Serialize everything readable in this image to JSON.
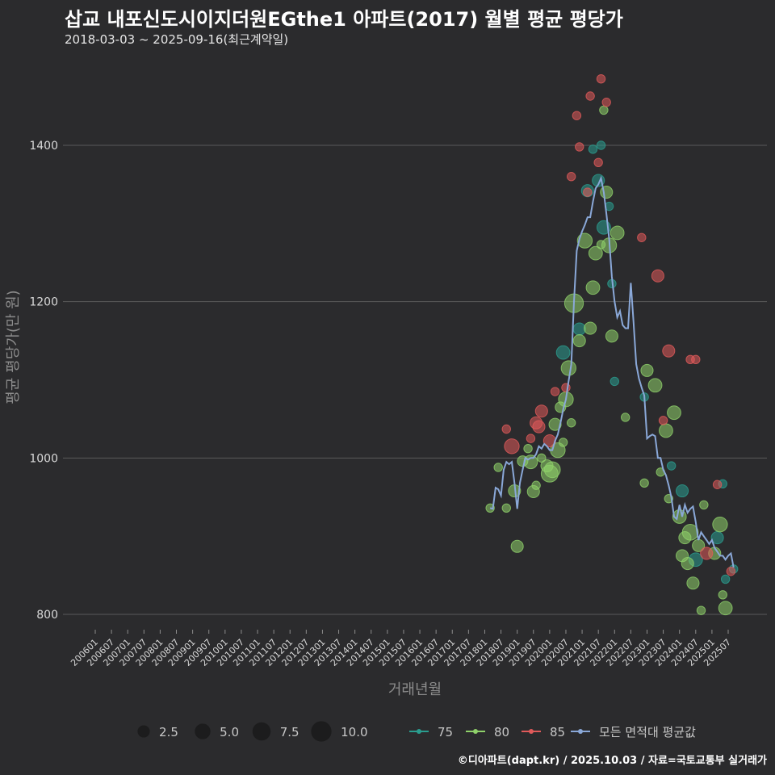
{
  "header": {
    "title": "삽교 내포신도시이지더원EGthe1 아파트(2017) 월별 평균 평당가",
    "subtitle": "2018-03-03 ~ 2025-09-16(최근계약일)"
  },
  "footer": {
    "credit": "©디아파트(dapt.kr) / 2025.10.03 / 자료=국토교통부 실거래가"
  },
  "colors": {
    "background": "#2b2b2d",
    "grid": "#5a5a5a",
    "s75": "#2a9d8f",
    "s80": "#8fd16a",
    "s85": "#e05a5a",
    "avg": "#8aa8d8"
  },
  "chart_data": {
    "type": "scatter",
    "title": "삽교 내포신도시이지더원EGthe1 아파트(2017) 월별 평균 평당가",
    "xlabel": "거래년월",
    "ylabel": "평균 평당가(만 원)",
    "ylim": [
      780,
      1500
    ],
    "yticks": [
      800,
      1000,
      1200,
      1400
    ],
    "xticks": [
      "200601",
      "200607",
      "200701",
      "200707",
      "200801",
      "200807",
      "200901",
      "200907",
      "201001",
      "201007",
      "201101",
      "201107",
      "201201",
      "201207",
      "201301",
      "201307",
      "201401",
      "201407",
      "201501",
      "201507",
      "201601",
      "201607",
      "201701",
      "201707",
      "201801",
      "201807",
      "201901",
      "201907",
      "202001",
      "202007",
      "202101",
      "202107",
      "202201",
      "202207",
      "202301",
      "202307",
      "202401",
      "202407",
      "202501",
      "202507"
    ],
    "size_legend": {
      "labels": [
        "2.5",
        "5.0",
        "7.5",
        "10.0"
      ],
      "values": [
        2.5,
        5.0,
        7.5,
        10.0
      ]
    },
    "color_legend": {
      "labels": [
        "75",
        "80",
        "85",
        "모든 면적대 평균값"
      ]
    },
    "series": [
      {
        "name": "75",
        "points": [
          {
            "x": "2020-06",
            "y": 1135,
            "n": 4
          },
          {
            "x": "2020-12",
            "y": 1165,
            "n": 3
          },
          {
            "x": "2021-03",
            "y": 1342,
            "n": 3
          },
          {
            "x": "2021-05",
            "y": 1395,
            "n": 1
          },
          {
            "x": "2021-07",
            "y": 1355,
            "n": 3
          },
          {
            "x": "2021-08",
            "y": 1400,
            "n": 1
          },
          {
            "x": "2021-09",
            "y": 1295,
            "n": 4
          },
          {
            "x": "2021-11",
            "y": 1322,
            "n": 1
          },
          {
            "x": "2021-12",
            "y": 1223,
            "n": 1
          },
          {
            "x": "2022-01",
            "y": 1098,
            "n": 1
          },
          {
            "x": "2022-12",
            "y": 1078,
            "n": 1
          },
          {
            "x": "2023-10",
            "y": 990,
            "n": 1
          },
          {
            "x": "2024-02",
            "y": 958,
            "n": 3
          },
          {
            "x": "2024-07",
            "y": 870,
            "n": 4
          },
          {
            "x": "2025-03",
            "y": 898,
            "n": 3
          },
          {
            "x": "2025-05",
            "y": 967,
            "n": 1
          },
          {
            "x": "2025-06",
            "y": 845,
            "n": 1
          },
          {
            "x": "2025-09",
            "y": 858,
            "n": 1
          }
        ]
      },
      {
        "name": "80",
        "points": [
          {
            "x": "2018-03",
            "y": 936,
            "n": 1
          },
          {
            "x": "2018-06",
            "y": 988,
            "n": 1
          },
          {
            "x": "2018-09",
            "y": 936,
            "n": 1
          },
          {
            "x": "2018-12",
            "y": 958,
            "n": 3
          },
          {
            "x": "2019-01",
            "y": 887,
            "n": 3
          },
          {
            "x": "2019-03",
            "y": 996,
            "n": 2
          },
          {
            "x": "2019-05",
            "y": 1012,
            "n": 1
          },
          {
            "x": "2019-06",
            "y": 995,
            "n": 4
          },
          {
            "x": "2019-07",
            "y": 957,
            "n": 3
          },
          {
            "x": "2019-08",
            "y": 965,
            "n": 1
          },
          {
            "x": "2019-10",
            "y": 1000,
            "n": 1
          },
          {
            "x": "2019-12",
            "y": 990,
            "n": 3
          },
          {
            "x": "2020-01",
            "y": 980,
            "n": 7
          },
          {
            "x": "2020-02",
            "y": 985,
            "n": 6
          },
          {
            "x": "2020-03",
            "y": 1043,
            "n": 3
          },
          {
            "x": "2020-04",
            "y": 1010,
            "n": 5
          },
          {
            "x": "2020-05",
            "y": 1065,
            "n": 2
          },
          {
            "x": "2020-06",
            "y": 1020,
            "n": 1
          },
          {
            "x": "2020-07",
            "y": 1075,
            "n": 5
          },
          {
            "x": "2020-08",
            "y": 1115,
            "n": 5
          },
          {
            "x": "2020-09",
            "y": 1045,
            "n": 1
          },
          {
            "x": "2020-10",
            "y": 1198,
            "n": 9
          },
          {
            "x": "2020-12",
            "y": 1150,
            "n": 3
          },
          {
            "x": "2021-02",
            "y": 1278,
            "n": 5
          },
          {
            "x": "2021-04",
            "y": 1166,
            "n": 3
          },
          {
            "x": "2021-05",
            "y": 1218,
            "n": 4
          },
          {
            "x": "2021-06",
            "y": 1262,
            "n": 4
          },
          {
            "x": "2021-08",
            "y": 1273,
            "n": 1
          },
          {
            "x": "2021-09",
            "y": 1445,
            "n": 1
          },
          {
            "x": "2021-10",
            "y": 1340,
            "n": 3
          },
          {
            "x": "2021-11",
            "y": 1272,
            "n": 5
          },
          {
            "x": "2021-12",
            "y": 1156,
            "n": 3
          },
          {
            "x": "2022-02",
            "y": 1288,
            "n": 4
          },
          {
            "x": "2022-05",
            "y": 1052,
            "n": 1
          },
          {
            "x": "2022-12",
            "y": 968,
            "n": 1
          },
          {
            "x": "2023-01",
            "y": 1112,
            "n": 3
          },
          {
            "x": "2023-04",
            "y": 1093,
            "n": 4
          },
          {
            "x": "2023-06",
            "y": 982,
            "n": 1
          },
          {
            "x": "2023-08",
            "y": 1035,
            "n": 4
          },
          {
            "x": "2023-09",
            "y": 948,
            "n": 1
          },
          {
            "x": "2023-11",
            "y": 1058,
            "n": 4
          },
          {
            "x": "2024-01",
            "y": 925,
            "n": 4
          },
          {
            "x": "2024-02",
            "y": 875,
            "n": 3
          },
          {
            "x": "2024-03",
            "y": 898,
            "n": 3
          },
          {
            "x": "2024-04",
            "y": 865,
            "n": 3
          },
          {
            "x": "2024-05",
            "y": 905,
            "n": 6
          },
          {
            "x": "2024-06",
            "y": 840,
            "n": 3
          },
          {
            "x": "2024-08",
            "y": 888,
            "n": 3
          },
          {
            "x": "2024-09",
            "y": 805,
            "n": 1
          },
          {
            "x": "2024-10",
            "y": 940,
            "n": 1
          },
          {
            "x": "2025-02",
            "y": 878,
            "n": 3
          },
          {
            "x": "2025-04",
            "y": 915,
            "n": 5
          },
          {
            "x": "2025-05",
            "y": 825,
            "n": 1
          },
          {
            "x": "2025-06",
            "y": 808,
            "n": 4
          }
        ]
      },
      {
        "name": "85",
        "points": [
          {
            "x": "2018-09",
            "y": 1037,
            "n": 1
          },
          {
            "x": "2018-11",
            "y": 1015,
            "n": 5
          },
          {
            "x": "2019-06",
            "y": 1025,
            "n": 1
          },
          {
            "x": "2019-08",
            "y": 1045,
            "n": 3
          },
          {
            "x": "2019-09",
            "y": 1040,
            "n": 3
          },
          {
            "x": "2019-10",
            "y": 1060,
            "n": 3
          },
          {
            "x": "2020-01",
            "y": 1022,
            "n": 3
          },
          {
            "x": "2020-03",
            "y": 1085,
            "n": 1
          },
          {
            "x": "2020-07",
            "y": 1090,
            "n": 1
          },
          {
            "x": "2020-09",
            "y": 1360,
            "n": 1
          },
          {
            "x": "2020-11",
            "y": 1438,
            "n": 1
          },
          {
            "x": "2020-12",
            "y": 1398,
            "n": 1
          },
          {
            "x": "2021-03",
            "y": 1340,
            "n": 1
          },
          {
            "x": "2021-04",
            "y": 1463,
            "n": 1
          },
          {
            "x": "2021-07",
            "y": 1378,
            "n": 1
          },
          {
            "x": "2021-08",
            "y": 1485,
            "n": 1
          },
          {
            "x": "2021-10",
            "y": 1455,
            "n": 1
          },
          {
            "x": "2022-11",
            "y": 1282,
            "n": 1
          },
          {
            "x": "2023-05",
            "y": 1233,
            "n": 3
          },
          {
            "x": "2023-07",
            "y": 1048,
            "n": 1
          },
          {
            "x": "2023-09",
            "y": 1137,
            "n": 3
          },
          {
            "x": "2024-05",
            "y": 1126,
            "n": 1
          },
          {
            "x": "2024-07",
            "y": 1126,
            "n": 1
          },
          {
            "x": "2024-11",
            "y": 878,
            "n": 3
          },
          {
            "x": "2025-03",
            "y": 966,
            "n": 1
          },
          {
            "x": "2025-08",
            "y": 855,
            "n": 1
          }
        ]
      },
      {
        "name": "모든 면적대 평균값",
        "type": "line",
        "points": [
          {
            "x": "2018-03",
            "y": 936
          },
          {
            "x": "2018-04",
            "y": 935
          },
          {
            "x": "2018-05",
            "y": 962
          },
          {
            "x": "2018-06",
            "y": 960
          },
          {
            "x": "2018-07",
            "y": 952
          },
          {
            "x": "2018-08",
            "y": 985
          },
          {
            "x": "2018-09",
            "y": 995
          },
          {
            "x": "2018-10",
            "y": 992
          },
          {
            "x": "2018-11",
            "y": 995
          },
          {
            "x": "2018-12",
            "y": 968
          },
          {
            "x": "2019-01",
            "y": 935
          },
          {
            "x": "2019-02",
            "y": 968
          },
          {
            "x": "2019-03",
            "y": 985
          },
          {
            "x": "2019-04",
            "y": 1000
          },
          {
            "x": "2019-05",
            "y": 998
          },
          {
            "x": "2019-06",
            "y": 1000
          },
          {
            "x": "2019-07",
            "y": 1000
          },
          {
            "x": "2019-08",
            "y": 1005
          },
          {
            "x": "2019-09",
            "y": 1015
          },
          {
            "x": "2019-10",
            "y": 1012
          },
          {
            "x": "2019-11",
            "y": 1018
          },
          {
            "x": "2019-12",
            "y": 1015
          },
          {
            "x": "2020-01",
            "y": 1010
          },
          {
            "x": "2020-02",
            "y": 1010
          },
          {
            "x": "2020-03",
            "y": 1022
          },
          {
            "x": "2020-04",
            "y": 1030
          },
          {
            "x": "2020-05",
            "y": 1045
          },
          {
            "x": "2020-06",
            "y": 1062
          },
          {
            "x": "2020-07",
            "y": 1075
          },
          {
            "x": "2020-08",
            "y": 1098
          },
          {
            "x": "2020-09",
            "y": 1120
          },
          {
            "x": "2020-10",
            "y": 1200
          },
          {
            "x": "2020-11",
            "y": 1265
          },
          {
            "x": "2020-12",
            "y": 1280
          },
          {
            "x": "2021-01",
            "y": 1290
          },
          {
            "x": "2021-02",
            "y": 1298
          },
          {
            "x": "2021-03",
            "y": 1308
          },
          {
            "x": "2021-04",
            "y": 1308
          },
          {
            "x": "2021-05",
            "y": 1328
          },
          {
            "x": "2021-06",
            "y": 1345
          },
          {
            "x": "2021-07",
            "y": 1350
          },
          {
            "x": "2021-08",
            "y": 1358
          },
          {
            "x": "2021-09",
            "y": 1340
          },
          {
            "x": "2021-10",
            "y": 1312
          },
          {
            "x": "2021-11",
            "y": 1280
          },
          {
            "x": "2021-12",
            "y": 1232
          },
          {
            "x": "2022-01",
            "y": 1200
          },
          {
            "x": "2022-02",
            "y": 1180
          },
          {
            "x": "2022-03",
            "y": 1188
          },
          {
            "x": "2022-04",
            "y": 1170
          },
          {
            "x": "2022-05",
            "y": 1166
          },
          {
            "x": "2022-06",
            "y": 1166
          },
          {
            "x": "2022-07",
            "y": 1224
          },
          {
            "x": "2022-08",
            "y": 1175
          },
          {
            "x": "2022-09",
            "y": 1120
          },
          {
            "x": "2022-10",
            "y": 1102
          },
          {
            "x": "2022-11",
            "y": 1090
          },
          {
            "x": "2022-12",
            "y": 1080
          },
          {
            "x": "2023-01",
            "y": 1025
          },
          {
            "x": "2023-02",
            "y": 1028
          },
          {
            "x": "2023-03",
            "y": 1030
          },
          {
            "x": "2023-04",
            "y": 1028
          },
          {
            "x": "2023-05",
            "y": 1000
          },
          {
            "x": "2023-06",
            "y": 1000
          },
          {
            "x": "2023-07",
            "y": 985
          },
          {
            "x": "2023-08",
            "y": 978
          },
          {
            "x": "2023-09",
            "y": 965
          },
          {
            "x": "2023-10",
            "y": 950
          },
          {
            "x": "2023-11",
            "y": 925
          },
          {
            "x": "2023-12",
            "y": 922
          },
          {
            "x": "2024-01",
            "y": 940
          },
          {
            "x": "2024-02",
            "y": 925
          },
          {
            "x": "2024-03",
            "y": 940
          },
          {
            "x": "2024-04",
            "y": 930
          },
          {
            "x": "2024-05",
            "y": 935
          },
          {
            "x": "2024-06",
            "y": 938
          },
          {
            "x": "2024-07",
            "y": 918
          },
          {
            "x": "2024-08",
            "y": 895
          },
          {
            "x": "2024-09",
            "y": 905
          },
          {
            "x": "2024-10",
            "y": 900
          },
          {
            "x": "2024-11",
            "y": 895
          },
          {
            "x": "2024-12",
            "y": 890
          },
          {
            "x": "2025-01",
            "y": 895
          },
          {
            "x": "2025-02",
            "y": 885
          },
          {
            "x": "2025-03",
            "y": 880
          },
          {
            "x": "2025-04",
            "y": 875
          },
          {
            "x": "2025-05",
            "y": 875
          },
          {
            "x": "2025-06",
            "y": 870
          },
          {
            "x": "2025-07",
            "y": 875
          },
          {
            "x": "2025-08",
            "y": 878
          },
          {
            "x": "2025-09",
            "y": 860
          }
        ]
      }
    ]
  }
}
